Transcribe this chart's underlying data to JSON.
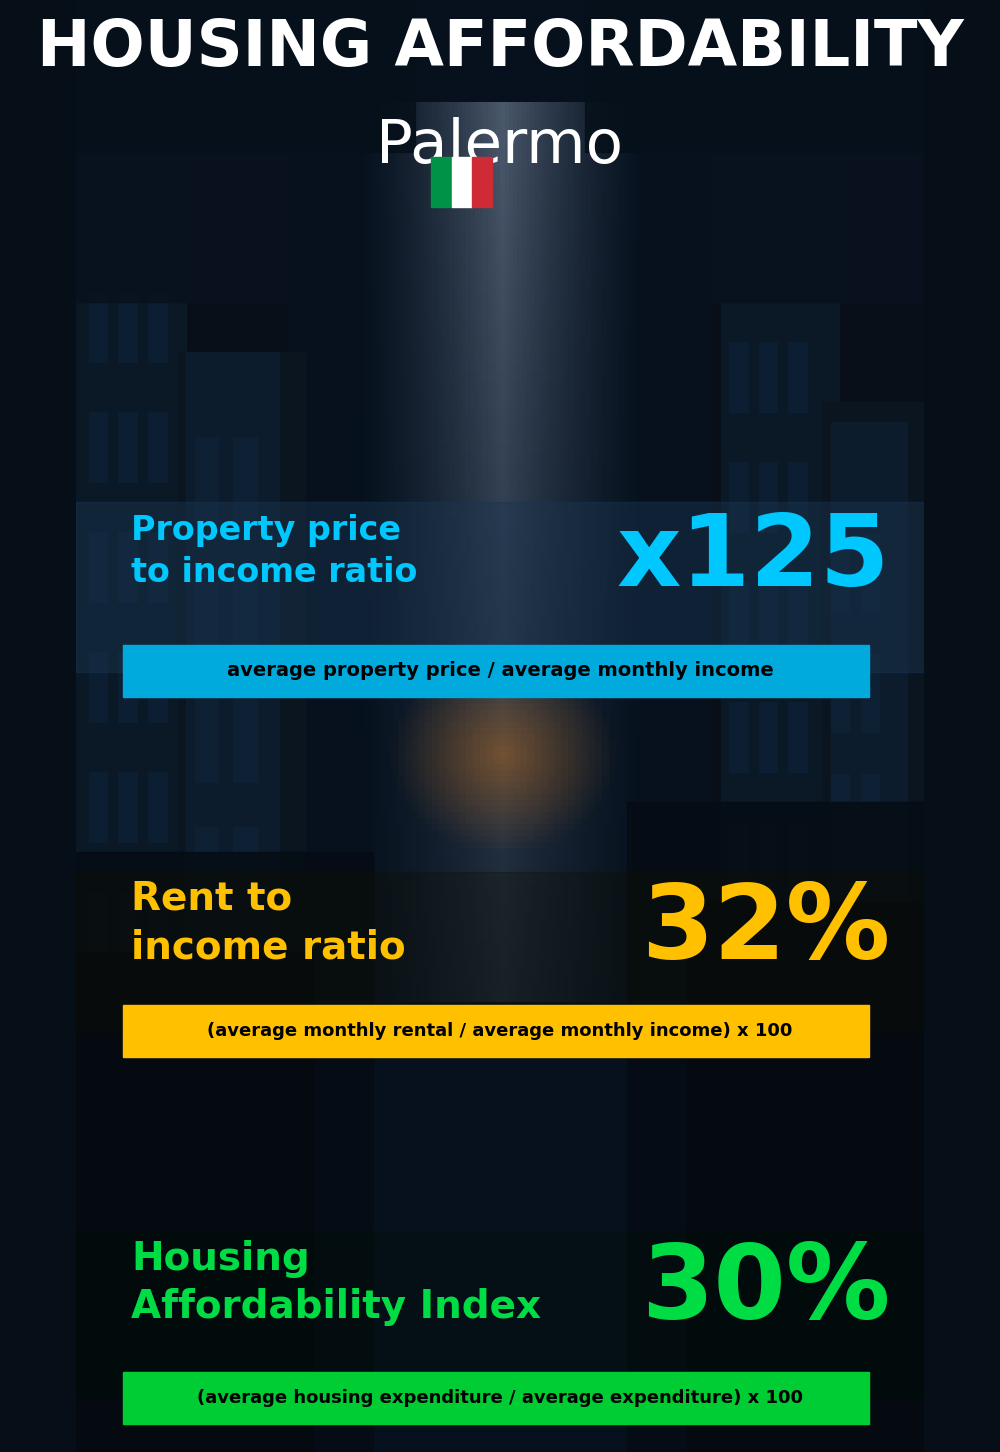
{
  "title_line1": "HOUSING AFFORDABILITY",
  "title_line2": "Palermo",
  "bg_color": "#060e18",
  "section1_label": "Property price\nto income ratio",
  "section1_value": "x125",
  "section1_label_color": "#00c8ff",
  "section1_value_color": "#00c8ff",
  "section1_band_color": "#00aadd",
  "section1_formula": "average property price / average monthly income",
  "section2_label": "Rent to\nincome ratio",
  "section2_value": "32%",
  "section2_label_color": "#ffc000",
  "section2_value_color": "#ffc000",
  "section2_band_color": "#ffc000",
  "section2_formula": "(average monthly rental / average monthly income) x 100",
  "section3_label": "Housing\nAffordability Index",
  "section3_value": "30%",
  "section3_label_color": "#00dd44",
  "section3_value_color": "#00dd44",
  "section3_band_color": "#00cc33",
  "section3_formula": "(average housing expenditure / average expenditure) x 100",
  "title_color": "#ffffff",
  "formula_text_color": "#000000"
}
